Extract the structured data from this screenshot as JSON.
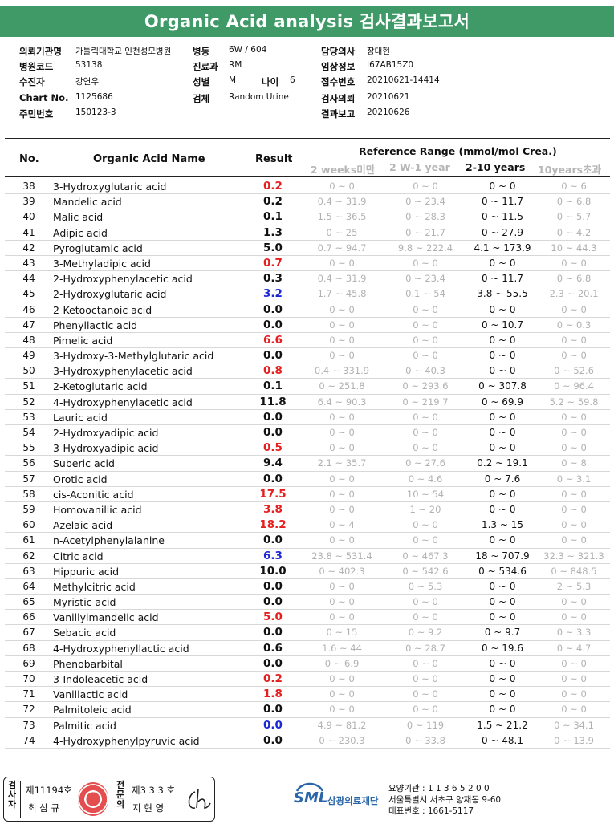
{
  "title": "Organic Acid analysis 검사결과보고서",
  "info": {
    "hospital_label": "의뢰기관명",
    "hospital": "가톨릭대학교 인천성모병원",
    "ward_label": "병동",
    "ward": "6W / 604",
    "doctor_label": "담당의사",
    "doctor": "장대현",
    "hospital_code_label": "병원코드",
    "hospital_code": "53138",
    "dept_label": "진료과",
    "dept": "RM",
    "clinical_label": "임상정보",
    "clinical": "I67AB15Z0",
    "examinee_label": "수진자",
    "examinee": "강연우",
    "sex_label": "성별",
    "sex": "M",
    "age_label": "나이",
    "age": "6",
    "receipt_label": "접수번호",
    "receipt": "20210621-14414",
    "chart_label": "Chart No.",
    "chart": "1125686",
    "specimen_label": "검체",
    "specimen": "Random Urine",
    "request_label": "검사의뢰",
    "request": "20210621",
    "idno_label": "주민번호",
    "idno": "150123-3",
    "report_label": "결과보고",
    "report": "20210626"
  },
  "table": {
    "col_no": "No.",
    "col_name": "Organic Acid Name",
    "col_result": "Result",
    "col_ref": "Reference Range (mmol/mol Crea.)",
    "sub1": "2 weeks미만",
    "sub2": "2 W-1 year",
    "sub3": "2-10 years",
    "sub4": "10years초과",
    "rows": [
      {
        "no": "38",
        "name": "3-Hydroxyglutaric acid",
        "result": "0.2",
        "flag": "hi",
        "r1": "0 ~ 0",
        "r2": "0 ~ 0",
        "r3": "0 ~ 0",
        "r4": "0 ~ 6"
      },
      {
        "no": "39",
        "name": "Mandelic acid",
        "result": "0.2",
        "flag": "",
        "r1": "0.4 ~ 31.9",
        "r2": "0 ~ 23.4",
        "r3": "0 ~ 11.7",
        "r4": "0 ~ 6.8"
      },
      {
        "no": "40",
        "name": "Malic acid",
        "result": "0.1",
        "flag": "",
        "r1": "1.5 ~ 36.5",
        "r2": "0 ~ 28.3",
        "r3": "0 ~ 11.5",
        "r4": "0 ~ 5.7"
      },
      {
        "no": "41",
        "name": "Adipic acid",
        "result": "1.3",
        "flag": "",
        "r1": "0 ~ 25",
        "r2": "0 ~ 21.7",
        "r3": "0 ~ 27.9",
        "r4": "0 ~ 4.2"
      },
      {
        "no": "42",
        "name": "Pyroglutamic acid",
        "result": "5.0",
        "flag": "",
        "r1": "0.7 ~ 94.7",
        "r2": "9.8 ~ 222.4",
        "r3": "4.1 ~ 173.9",
        "r4": "10 ~ 44.3"
      },
      {
        "no": "43",
        "name": "3-Methyladipic acid",
        "result": "0.7",
        "flag": "hi",
        "r1": "0 ~ 0",
        "r2": "0 ~ 0",
        "r3": "0 ~ 0",
        "r4": "0 ~ 0"
      },
      {
        "no": "44",
        "name": "2-Hydroxyphenylacetic acid",
        "result": "0.3",
        "flag": "",
        "r1": "0.4 ~ 31.9",
        "r2": "0 ~ 23.4",
        "r3": "0 ~ 11.7",
        "r4": "0 ~ 6.8"
      },
      {
        "no": "45",
        "name": "2-Hydroxyglutaric acid",
        "result": "3.2",
        "flag": "lo",
        "r1": "1.7 ~ 45.8",
        "r2": "0.1 ~ 54",
        "r3": "3.8 ~ 55.5",
        "r4": "2.3 ~ 20.1"
      },
      {
        "no": "46",
        "name": "2-Ketooctanoic acid",
        "result": "0.0",
        "flag": "",
        "r1": "0 ~ 0",
        "r2": "0 ~ 0",
        "r3": "0 ~ 0",
        "r4": "0 ~ 0"
      },
      {
        "no": "47",
        "name": "Phenyllactic acid",
        "result": "0.0",
        "flag": "",
        "r1": "0 ~ 0",
        "r2": "0 ~ 0",
        "r3": "0 ~ 10.7",
        "r4": "0 ~ 0.3"
      },
      {
        "no": "48",
        "name": "Pimelic acid",
        "result": "6.6",
        "flag": "hi",
        "r1": "0 ~ 0",
        "r2": "0 ~ 0",
        "r3": "0 ~ 0",
        "r4": "0 ~ 0"
      },
      {
        "no": "49",
        "name": "3-Hydroxy-3-Methylglutaric acid",
        "result": "0.0",
        "flag": "",
        "r1": "0 ~ 0",
        "r2": "0 ~ 0",
        "r3": "0 ~ 0",
        "r4": "0 ~ 0"
      },
      {
        "no": "50",
        "name": "3-Hydroxyphenylacetic acid",
        "result": "0.8",
        "flag": "hi",
        "r1": "0.4 ~ 331.9",
        "r2": "0 ~ 40.3",
        "r3": "0 ~ 0",
        "r4": "0 ~ 52.6"
      },
      {
        "no": "51",
        "name": "2-Ketoglutaric acid",
        "result": "0.1",
        "flag": "",
        "r1": "0 ~ 251.8",
        "r2": "0 ~ 293.6",
        "r3": "0 ~ 307.8",
        "r4": "0 ~ 96.4"
      },
      {
        "no": "52",
        "name": "4-Hydroxyphenylacetic acid",
        "result": "11.8",
        "flag": "",
        "r1": "6.4 ~ 90.3",
        "r2": "0 ~ 219.7",
        "r3": "0 ~ 69.9",
        "r4": "5.2 ~ 59.8"
      },
      {
        "no": "53",
        "name": "Lauric acid",
        "result": "0.0",
        "flag": "",
        "r1": "0 ~ 0",
        "r2": "0 ~ 0",
        "r3": "0 ~ 0",
        "r4": "0 ~ 0"
      },
      {
        "no": "54",
        "name": "2-Hydroxyadipic acid",
        "result": "0.0",
        "flag": "",
        "r1": "0 ~ 0",
        "r2": "0 ~ 0",
        "r3": "0 ~ 0",
        "r4": "0 ~ 0"
      },
      {
        "no": "55",
        "name": "3-Hydroxyadipic acid",
        "result": "0.5",
        "flag": "hi",
        "r1": "0 ~ 0",
        "r2": "0 ~ 0",
        "r3": "0 ~ 0",
        "r4": "0 ~ 0"
      },
      {
        "no": "56",
        "name": "Suberic acid",
        "result": "9.4",
        "flag": "",
        "r1": "2.1 ~ 35.7",
        "r2": "0 ~ 27.6",
        "r3": "0.2 ~ 19.1",
        "r4": "0 ~ 8"
      },
      {
        "no": "57",
        "name": "Orotic acid",
        "result": "0.0",
        "flag": "",
        "r1": "0 ~ 0",
        "r2": "0 ~ 4.6",
        "r3": "0 ~ 7.6",
        "r4": "0 ~ 3.1"
      },
      {
        "no": "58",
        "name": "cis-Aconitic acid",
        "result": "17.5",
        "flag": "hi",
        "r1": "0 ~ 0",
        "r2": "10 ~ 54",
        "r3": "0 ~ 0",
        "r4": "0 ~ 0"
      },
      {
        "no": "59",
        "name": "Homovanillic acid",
        "result": "3.8",
        "flag": "hi",
        "r1": "0 ~ 0",
        "r2": "1 ~ 20",
        "r3": "0 ~ 0",
        "r4": "0 ~ 0"
      },
      {
        "no": "60",
        "name": "Azelaic acid",
        "result": "18.2",
        "flag": "hi",
        "r1": "0 ~ 4",
        "r2": "0 ~ 0",
        "r3": "1.3 ~ 15",
        "r4": "0 ~ 0"
      },
      {
        "no": "61",
        "name": "n-Acetylphenylalanine",
        "result": "0.0",
        "flag": "",
        "r1": "0 ~ 0",
        "r2": "0 ~ 0",
        "r3": "0 ~ 0",
        "r4": "0 ~ 0"
      },
      {
        "no": "62",
        "name": "Citric acid",
        "result": "6.3",
        "flag": "lo",
        "r1": "23.8 ~ 531.4",
        "r2": "0 ~ 467.3",
        "r3": "18 ~ 707.9",
        "r4": "32.3 ~ 321.3"
      },
      {
        "no": "63",
        "name": "Hippuric acid",
        "result": "10.0",
        "flag": "",
        "r1": "0 ~ 402.3",
        "r2": "0 ~ 542.6",
        "r3": "0 ~ 534.6",
        "r4": "0 ~ 848.5"
      },
      {
        "no": "64",
        "name": "Methylcitric acid",
        "result": "0.0",
        "flag": "",
        "r1": "0 ~ 0",
        "r2": "0 ~ 5.3",
        "r3": "0 ~ 0",
        "r4": "2 ~ 5.3"
      },
      {
        "no": "65",
        "name": "Myristic acid",
        "result": "0.0",
        "flag": "",
        "r1": "0 ~ 0",
        "r2": "0 ~ 0",
        "r3": "0 ~ 0",
        "r4": "0 ~ 0"
      },
      {
        "no": "66",
        "name": "Vanillylmandelic acid",
        "result": "5.0",
        "flag": "hi",
        "r1": "0 ~ 0",
        "r2": "0 ~ 0",
        "r3": "0 ~ 0",
        "r4": "0 ~ 0"
      },
      {
        "no": "67",
        "name": "Sebacic acid",
        "result": "0.0",
        "flag": "",
        "r1": "0 ~ 15",
        "r2": "0 ~ 9.2",
        "r3": "0 ~ 9.7",
        "r4": "0 ~ 3.3"
      },
      {
        "no": "68",
        "name": "4-Hydroxyphenyllactic acid",
        "result": "0.6",
        "flag": "",
        "r1": "1.6 ~ 44",
        "r2": "0 ~ 28.7",
        "r3": "0 ~ 19.6",
        "r4": "0 ~ 4.7"
      },
      {
        "no": "69",
        "name": "Phenobarbital",
        "result": "0.0",
        "flag": "",
        "r1": "0 ~ 6.9",
        "r2": "0 ~ 0",
        "r3": "0 ~ 0",
        "r4": "0 ~ 0"
      },
      {
        "no": "70",
        "name": "3-Indoleacetic acid",
        "result": "0.2",
        "flag": "hi",
        "r1": "0 ~ 0",
        "r2": "0 ~ 0",
        "r3": "0 ~ 0",
        "r4": "0 ~ 0"
      },
      {
        "no": "71",
        "name": "Vanillactic acid",
        "result": "1.8",
        "flag": "hi",
        "r1": "0 ~ 0",
        "r2": "0 ~ 0",
        "r3": "0 ~ 0",
        "r4": "0 ~ 0"
      },
      {
        "no": "72",
        "name": "Palmitoleic acid",
        "result": "0.0",
        "flag": "",
        "r1": "0 ~ 0",
        "r2": "0 ~ 0",
        "r3": "0 ~ 0",
        "r4": "0 ~ 0"
      },
      {
        "no": "73",
        "name": "Palmitic acid",
        "result": "0.0",
        "flag": "lo",
        "r1": "4.9 ~ 81.2",
        "r2": "0 ~ 119",
        "r3": "1.5 ~ 21.2",
        "r4": "0 ~ 34.1"
      },
      {
        "no": "74",
        "name": "4-Hydroxyphenylpyruvic acid",
        "result": "0.0",
        "flag": "",
        "r1": "0 ~ 230.3",
        "r2": "0 ~ 33.8",
        "r3": "0 ~ 48.1",
        "r4": "0 ~ 13.9"
      }
    ]
  },
  "footer": {
    "exam_label": "검사자",
    "exam_no": "제11194호",
    "exam_name": "최 삼 규",
    "confirm_label": "전문의",
    "confirm_no": "제3 3 3 호",
    "confirm_name": "지 현 영",
    "logo": "SML",
    "org": "삼광의료재단",
    "lab_code": "요양기관 : 1 1 3 6 5 2 0 0",
    "lab_addr": "서울특별시 서초구 양재동 9-60",
    "lab_tel": "대표번호 : 1661-5117"
  },
  "colors": {
    "header_bg": "#3f9a68",
    "high": "#e61e1e",
    "low": "#1c28d6",
    "logo": "#2a66a8"
  }
}
